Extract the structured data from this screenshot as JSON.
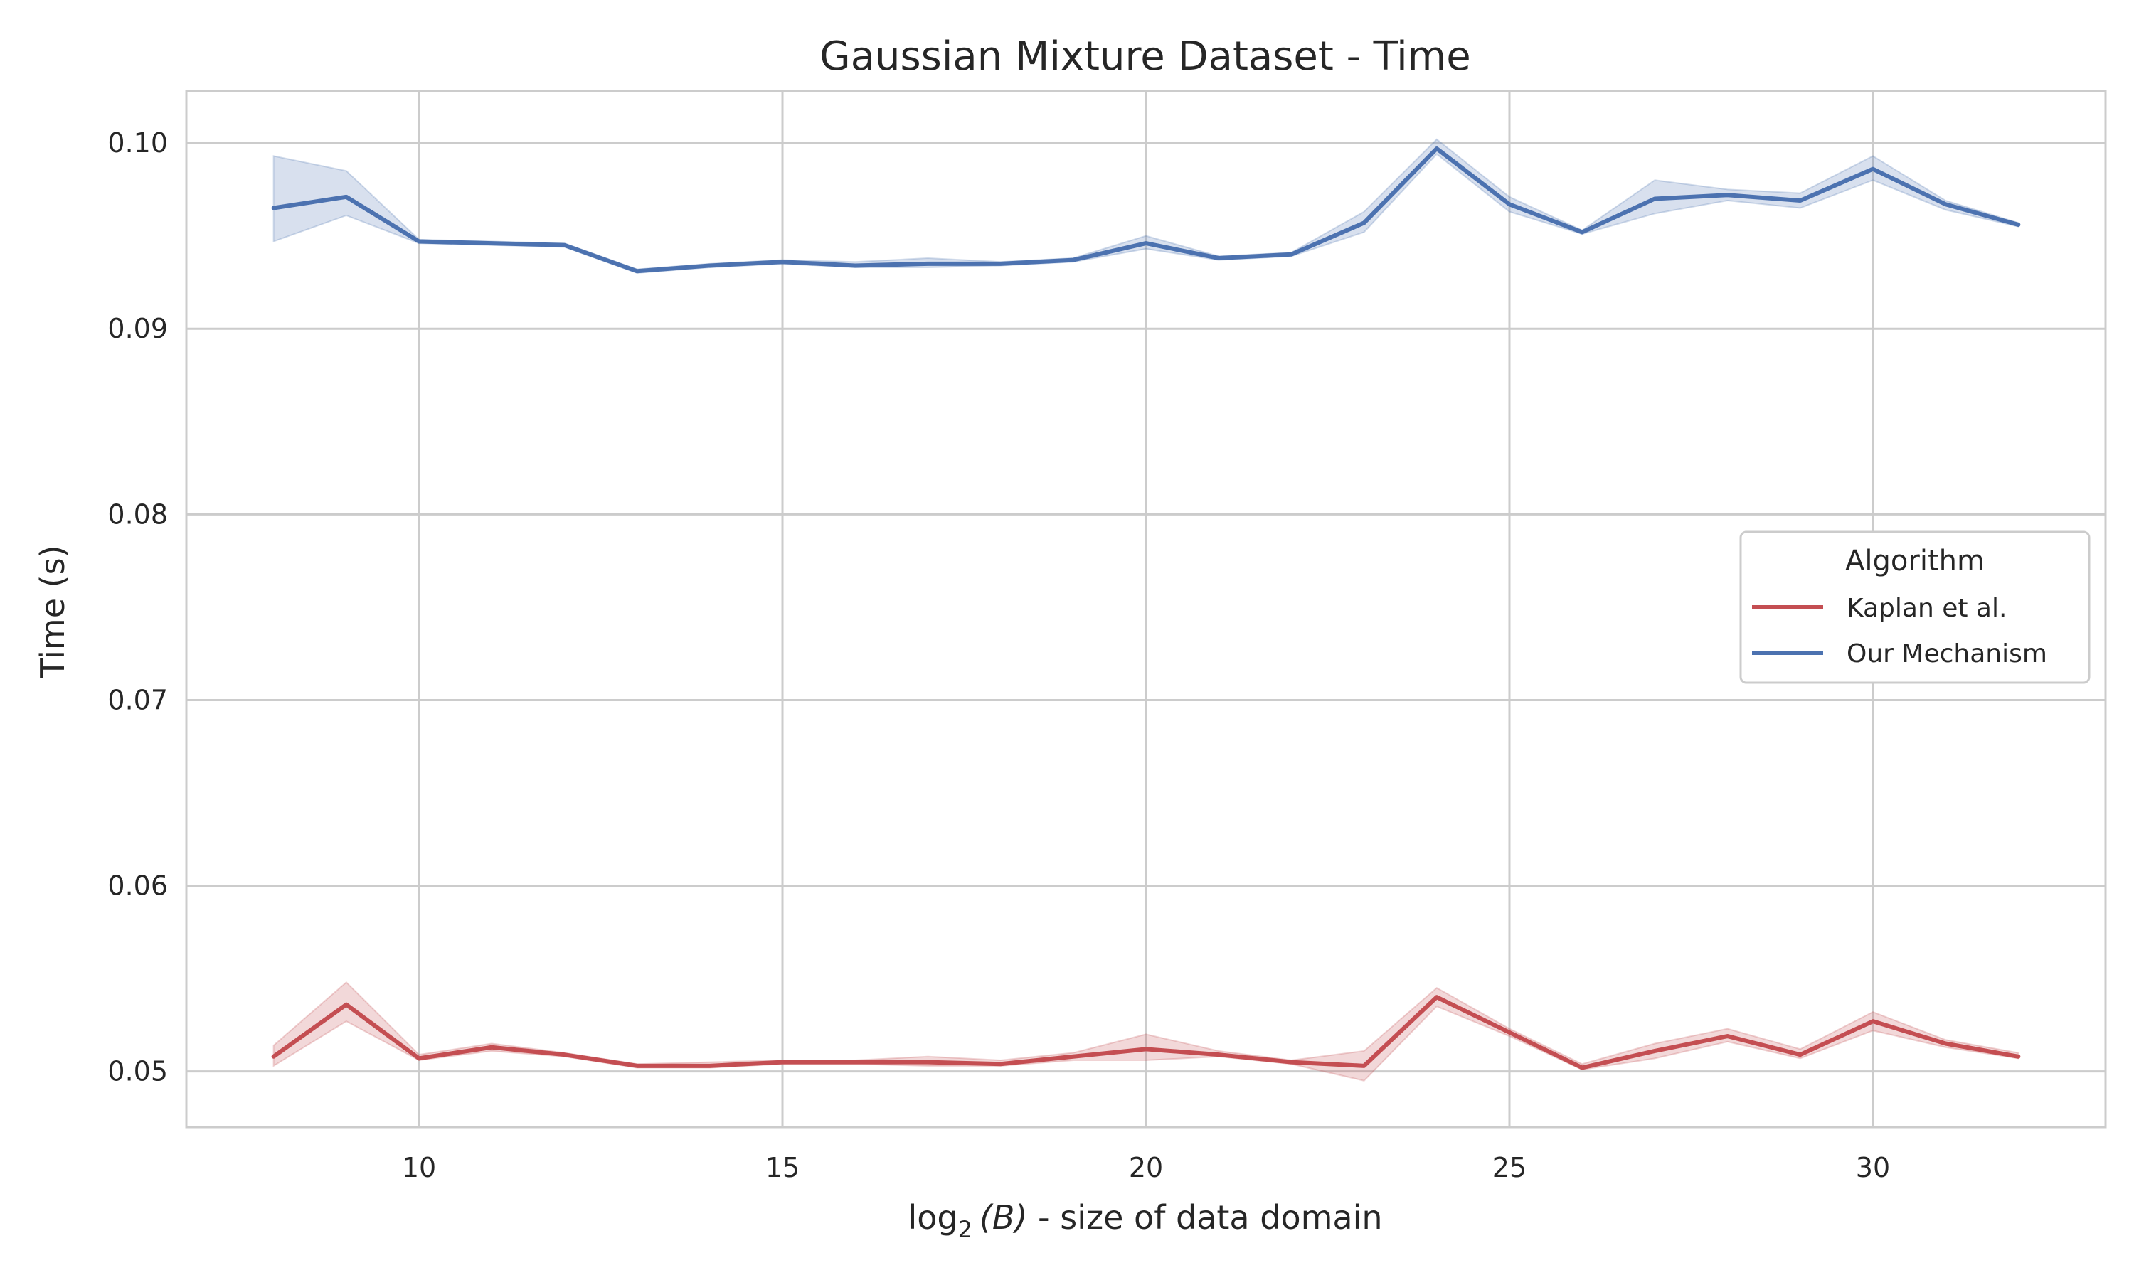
{
  "chart_data": {
    "type": "line",
    "title": "Gaussian Mixture  Dataset - Time",
    "xlabel_prefix": "log",
    "xlabel_sub": "2",
    "xlabel_arg": "(B)",
    "xlabel_suffix": " - size of data domain",
    "ylabel": "Time (s)",
    "xlim": [
      6.8,
      33.2
    ],
    "ylim": [
      0.047,
      0.1028
    ],
    "xticks": [
      10,
      15,
      20,
      25,
      30
    ],
    "xtick_labels": [
      "10",
      "15",
      "20",
      "25",
      "30"
    ],
    "yticks": [
      0.05,
      0.06,
      0.07,
      0.08,
      0.09,
      0.1
    ],
    "ytick_labels": [
      "0.05",
      "0.06",
      "0.07",
      "0.08",
      "0.09",
      "0.10"
    ],
    "grid": true,
    "legend": {
      "title": "Algorithm",
      "placement": "right"
    },
    "x": [
      8,
      9,
      10,
      11,
      12,
      13,
      14,
      15,
      16,
      17,
      18,
      19,
      20,
      21,
      22,
      23,
      24,
      25,
      26,
      27,
      28,
      29,
      30,
      31,
      32
    ],
    "series": [
      {
        "name": "Kaplan et al.",
        "color": "#c44e52",
        "values": [
          0.0508,
          0.0536,
          0.0507,
          0.0513,
          0.0509,
          0.0503,
          0.0503,
          0.0505,
          0.0505,
          0.0505,
          0.0504,
          0.0508,
          0.0512,
          0.0509,
          0.0505,
          0.0503,
          0.054,
          0.0521,
          0.0502,
          0.0511,
          0.0519,
          0.0509,
          0.0527,
          0.0515,
          0.0508
        ],
        "lower": [
          0.0503,
          0.0527,
          0.0506,
          0.0511,
          0.0508,
          0.0502,
          0.0502,
          0.0504,
          0.0504,
          0.0503,
          0.0503,
          0.0506,
          0.0506,
          0.0508,
          0.0504,
          0.0495,
          0.0535,
          0.0519,
          0.0501,
          0.0507,
          0.0516,
          0.0507,
          0.0522,
          0.0513,
          0.0507
        ],
        "upper": [
          0.0514,
          0.0548,
          0.0509,
          0.0515,
          0.051,
          0.0504,
          0.0505,
          0.0506,
          0.0506,
          0.0508,
          0.0506,
          0.051,
          0.052,
          0.0511,
          0.0506,
          0.0511,
          0.0545,
          0.0523,
          0.0504,
          0.0515,
          0.0523,
          0.0512,
          0.0532,
          0.0517,
          0.051
        ]
      },
      {
        "name": "Our Mechanism",
        "color": "#4c72b0",
        "values": [
          0.0965,
          0.0971,
          0.0947,
          0.0946,
          0.0945,
          0.0931,
          0.0934,
          0.0936,
          0.0934,
          0.0935,
          0.0935,
          0.0937,
          0.0946,
          0.0938,
          0.094,
          0.0957,
          0.0997,
          0.0967,
          0.0952,
          0.097,
          0.0972,
          0.0969,
          0.0986,
          0.0967,
          0.0956
        ],
        "lower": [
          0.0947,
          0.0961,
          0.0946,
          0.0945,
          0.0944,
          0.093,
          0.0933,
          0.0935,
          0.0933,
          0.0933,
          0.0934,
          0.0936,
          0.0943,
          0.0937,
          0.0939,
          0.0952,
          0.0994,
          0.0963,
          0.0951,
          0.0962,
          0.0969,
          0.0965,
          0.098,
          0.0964,
          0.0955
        ],
        "upper": [
          0.0993,
          0.0985,
          0.0948,
          0.0947,
          0.0946,
          0.0932,
          0.0935,
          0.0937,
          0.0936,
          0.0938,
          0.0936,
          0.0938,
          0.095,
          0.0939,
          0.0941,
          0.0963,
          0.1002,
          0.0971,
          0.0953,
          0.098,
          0.0975,
          0.0973,
          0.0993,
          0.0969,
          0.0957
        ]
      }
    ]
  }
}
